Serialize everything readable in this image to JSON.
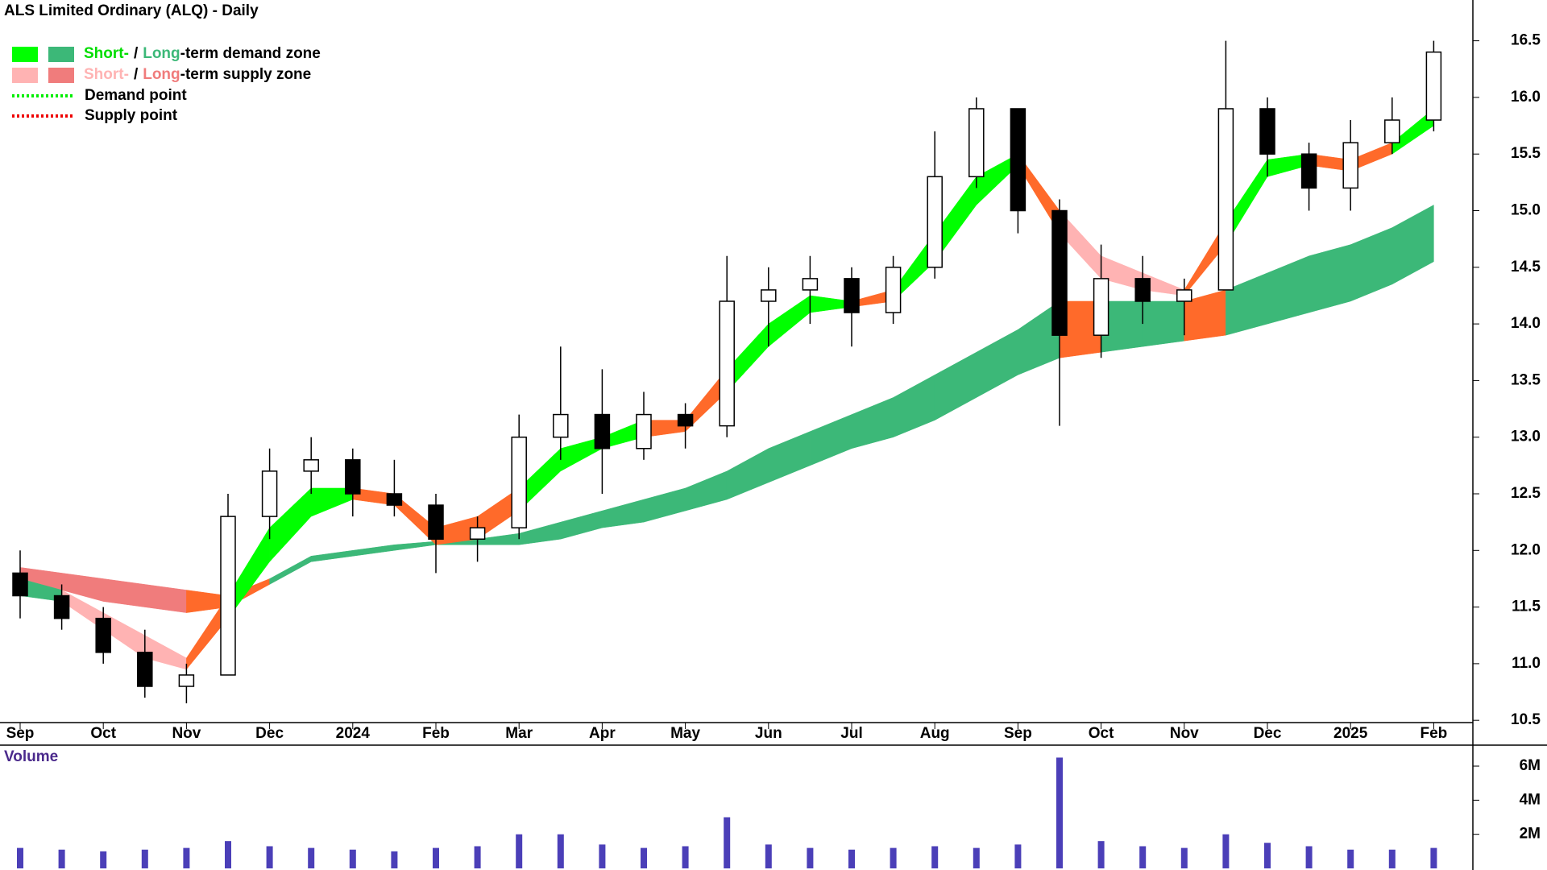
{
  "chart_data": [
    {
      "type": "candlestick",
      "title": "ALS Limited Ordinary (ALQ) - Daily",
      "categories": [
        "Sep",
        null,
        "Oct",
        null,
        "Nov",
        null,
        "Dec",
        null,
        "2024",
        null,
        "Feb",
        null,
        "Mar",
        null,
        "Apr",
        null,
        "May",
        null,
        "Jun",
        null,
        "Jul",
        null,
        "Aug",
        null,
        "Sep",
        null,
        "Oct",
        null,
        "Nov",
        null,
        "Dec",
        null,
        "2025",
        null,
        "Feb"
      ],
      "open": [
        11.8,
        11.6,
        11.4,
        11.1,
        10.8,
        10.9,
        12.3,
        12.7,
        12.8,
        12.5,
        12.4,
        12.1,
        12.2,
        13.0,
        13.2,
        12.9,
        13.2,
        13.1,
        14.2,
        14.3,
        14.4,
        14.1,
        14.5,
        15.3,
        15.9,
        15.0,
        13.9,
        14.4,
        14.2,
        14.3,
        15.9,
        15.5,
        15.2,
        15.6,
        15.8
      ],
      "high": [
        12.0,
        11.7,
        11.5,
        11.3,
        11.0,
        12.5,
        12.9,
        13.0,
        12.9,
        12.8,
        12.5,
        12.3,
        13.2,
        13.8,
        13.6,
        13.4,
        13.3,
        14.6,
        14.5,
        14.6,
        14.5,
        14.6,
        15.7,
        16.0,
        15.9,
        15.1,
        14.7,
        14.6,
        14.4,
        16.5,
        16.0,
        15.6,
        15.8,
        16.0,
        16.5
      ],
      "low": [
        11.4,
        11.3,
        11.0,
        10.7,
        10.65,
        10.9,
        12.1,
        12.5,
        12.3,
        12.3,
        11.8,
        11.9,
        12.1,
        12.8,
        12.5,
        12.8,
        12.9,
        13.0,
        13.8,
        14.0,
        13.8,
        14.0,
        14.4,
        15.2,
        14.8,
        13.1,
        13.7,
        14.0,
        13.9,
        14.3,
        15.3,
        15.0,
        15.0,
        15.5,
        15.7
      ],
      "close": [
        11.6,
        11.4,
        11.1,
        10.8,
        10.9,
        12.3,
        12.7,
        12.8,
        12.5,
        12.4,
        12.1,
        12.2,
        13.0,
        13.2,
        12.9,
        13.2,
        13.1,
        14.2,
        14.3,
        14.4,
        14.1,
        14.5,
        15.3,
        15.9,
        15.0,
        13.9,
        14.4,
        14.2,
        14.3,
        15.9,
        15.5,
        15.2,
        15.6,
        15.8,
        16.4
      ],
      "zones": [
        {
          "upper": [
            11.85,
            11.8,
            11.75,
            11.7,
            11.65,
            11.6,
            11.75,
            11.95,
            12.0,
            12.05,
            12.08,
            12.1,
            12.15,
            12.25,
            12.35,
            12.45,
            12.55,
            12.7,
            12.9,
            13.05,
            13.2,
            13.35,
            13.55,
            13.75,
            13.95,
            14.2,
            14.2,
            14.2,
            14.2,
            14.3,
            14.45,
            14.6,
            14.7,
            14.85,
            15.05
          ],
          "lower": [
            11.75,
            11.65,
            11.55,
            11.5,
            11.45,
            11.5,
            11.7,
            11.9,
            11.95,
            12.0,
            12.05,
            12.05,
            12.05,
            12.1,
            12.2,
            12.25,
            12.35,
            12.45,
            12.6,
            12.75,
            12.9,
            13.0,
            13.15,
            13.35,
            13.55,
            13.7,
            13.75,
            13.8,
            13.85,
            13.9,
            14.0,
            14.1,
            14.2,
            14.35,
            14.55
          ],
          "colors": [
            "#f07c7c",
            "#f07c7c",
            "#f07c7c",
            "#f07c7c",
            "#ff6a2a",
            "#ff6a2a",
            "#3cb878",
            "#3cb878",
            "#3cb878",
            "#3cb878",
            "#3cb878",
            "#3cb878",
            "#3cb878",
            "#3cb878",
            "#3cb878",
            "#3cb878",
            "#3cb878",
            "#3cb878",
            "#3cb878",
            "#3cb878",
            "#3cb878",
            "#3cb878",
            "#3cb878",
            "#3cb878",
            "#3cb878",
            "#ff6a2a",
            "#3cb878",
            "#3cb878",
            "#ff6a2a",
            "#3cb878",
            "#3cb878",
            "#3cb878",
            "#3cb878",
            "#3cb878",
            "#3cb878"
          ]
        },
        {
          "upper": [
            11.75,
            11.65,
            11.45,
            11.25,
            11.05,
            11.6,
            12.2,
            12.55,
            12.55,
            12.5,
            12.2,
            12.3,
            12.55,
            12.9,
            13.0,
            13.15,
            13.15,
            13.6,
            14.0,
            14.25,
            14.2,
            14.3,
            14.8,
            15.3,
            15.5,
            15.0,
            14.6,
            14.45,
            14.3,
            14.9,
            15.45,
            15.5,
            15.45,
            15.6,
            15.9
          ],
          "lower": [
            11.6,
            11.55,
            11.3,
            11.05,
            10.95,
            11.4,
            11.9,
            12.3,
            12.45,
            12.4,
            12.05,
            12.1,
            12.35,
            12.7,
            12.9,
            13.0,
            13.05,
            13.4,
            13.8,
            14.1,
            14.15,
            14.2,
            14.55,
            15.05,
            15.4,
            14.8,
            14.4,
            14.3,
            14.25,
            14.7,
            15.3,
            15.4,
            15.35,
            15.5,
            15.75
          ],
          "colors": [
            "#3cb878",
            "#ffb3b3",
            "#ffb3b3",
            "#ffb3b3",
            "#ff6a2a",
            "#00ff00",
            "#00ff00",
            "#00ff00",
            "#ff6a2a",
            "#ff6a2a",
            "#ff6a2a",
            "#ff6a2a",
            "#00ff00",
            "#00ff00",
            "#00ff00",
            "#ff6a2a",
            "#ff6a2a",
            "#00ff00",
            "#00ff00",
            "#00ff00",
            "#ff6a2a",
            "#00ff00",
            "#00ff00",
            "#00ff00",
            "#ff6a2a",
            "#ffb3b3",
            "#ffb3b3",
            "#ffb3b3",
            "#ff6a2a",
            "#00ff00",
            "#00ff00",
            "#ff6a2a",
            "#ff6a2a",
            "#00ff00",
            "#00ff00"
          ]
        }
      ],
      "ylim": [
        10.48,
        16.86
      ],
      "yticks": [
        {
          "value": 10.5,
          "label": "10.5"
        },
        {
          "value": 11,
          "label": "11.0"
        },
        11.5,
        {
          "value": 12,
          "label": "12.0"
        },
        12.5,
        {
          "value": 13,
          "label": "13.0"
        },
        13.5,
        {
          "value": 14,
          "label": "14.0"
        },
        14.5,
        {
          "value": 15,
          "label": "15.0"
        },
        15.5,
        {
          "value": 16,
          "label": "16.0"
        },
        16.5
      ],
      "legend": [
        {
          "short": "Short-",
          "sep": "/",
          "long": "Long",
          "rest": "-term demand zone",
          "colors": [
            "#00ff00",
            "#3cb878"
          ],
          "text_colors": [
            "#00dd00",
            "#3cb878"
          ]
        },
        {
          "short": "Short-",
          "sep": "/",
          "long": "Long",
          "rest": "-term supply zone",
          "colors": [
            "#ffb3b3",
            "#f07c7c"
          ],
          "text_colors": [
            "#ffb3b3",
            "#f07c7c"
          ]
        }
      ],
      "points": [
        {
          "label": "Demand point",
          "color": "#00ee00"
        },
        {
          "label": "Supply point",
          "color": "#ee0000"
        }
      ]
    },
    {
      "type": "bar",
      "title": "Volume",
      "color": "#4b3fb8",
      "values": [
        1200000,
        1100000,
        1000000,
        1100000,
        1200000,
        1600000,
        1300000,
        1200000,
        1100000,
        1000000,
        1200000,
        1300000,
        2000000,
        2000000,
        1400000,
        1200000,
        1300000,
        3000000,
        1400000,
        1200000,
        1100000,
        1200000,
        1300000,
        1200000,
        1400000,
        6500000,
        1600000,
        1300000,
        1200000,
        2000000,
        1500000,
        1300000,
        1100000,
        1100000,
        1200000
      ],
      "ylim": [
        0,
        7230000
      ],
      "yticks": [
        {
          "value": 2000000,
          "label": "2M"
        },
        {
          "value": 4000000,
          "label": "4M"
        },
        {
          "value": 6000000,
          "label": "6M"
        }
      ]
    }
  ]
}
